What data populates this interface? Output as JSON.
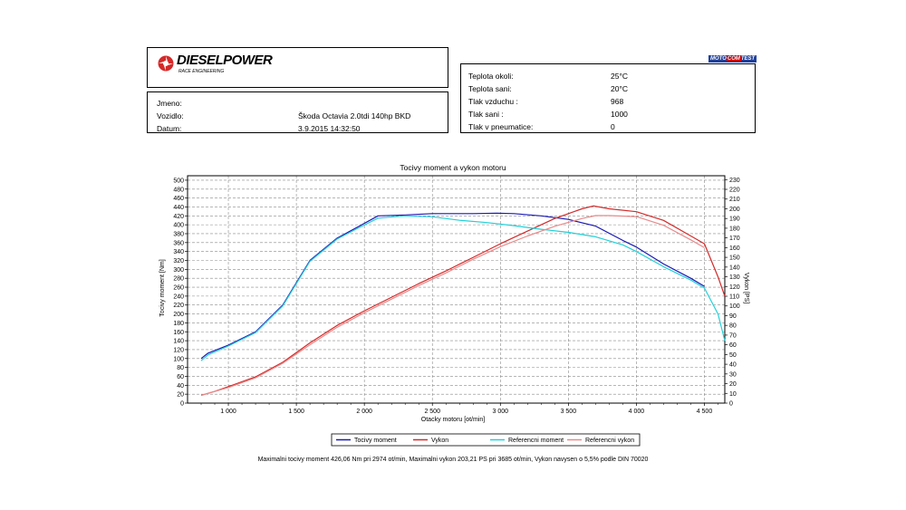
{
  "header": {
    "logo_text": "DIESELPOWER",
    "logo_subtitle": "RACE ENGINEERING",
    "brand_badge_left": "MOTO",
    "brand_badge_mid": "COM",
    "brand_badge_right": "TEST"
  },
  "info_left": [
    {
      "label": "Jmeno:",
      "value": ""
    },
    {
      "label": "Vozidlo:",
      "value": "Škoda Octavia 2.0tdi 140hp BKD"
    },
    {
      "label": "Datum:",
      "value": "3.9.2015 14:32:50"
    }
  ],
  "info_right": [
    {
      "label": "Teplota okoli:",
      "value": "25°C"
    },
    {
      "label": "Teplota sani:",
      "value": "20°C"
    },
    {
      "label": "Tlak vzduchu :",
      "value": "968"
    },
    {
      "label": "Tlak sani :",
      "value": "1000"
    },
    {
      "label": "Tlak v pneumatice:",
      "value": "0"
    }
  ],
  "footer": "Maximalni tocivy moment 426,06 Nm pri 2974 ot/min,  Maximalni vykon 203,21 PS pri 3685 ot/min,  Vykon navysen o 5,5% podle DIN 70020",
  "colors": {
    "moment": "#1a1ab4",
    "vykon": "#d42a2a",
    "ref_moment": "#22d0d8",
    "ref_vykon": "#e88a8a"
  },
  "chart_data": {
    "type": "line",
    "title": "Tocivy moment a vykon motoru",
    "xlabel": "Otacky motoru [ot/min]",
    "ylabel": "Tocivy moment [Nm]",
    "y2label": "Vykon [PS]",
    "xlim": [
      700,
      4650
    ],
    "ylim": [
      0,
      510
    ],
    "y2lim": [
      0,
      234
    ],
    "xticks": [
      1000,
      1500,
      2000,
      2500,
      3000,
      3500,
      4000,
      4500
    ],
    "xtick_labels": [
      "1 000",
      "1 500",
      "2 000",
      "2 500",
      "3 000",
      "3 500",
      "4 000",
      "4 500"
    ],
    "yticks": [
      0,
      20,
      40,
      60,
      80,
      100,
      120,
      140,
      160,
      180,
      200,
      220,
      240,
      260,
      280,
      300,
      320,
      340,
      360,
      380,
      400,
      420,
      440,
      460,
      480,
      500
    ],
    "y2ticks": [
      0,
      10,
      20,
      30,
      40,
      50,
      60,
      70,
      80,
      90,
      100,
      110,
      120,
      130,
      140,
      150,
      160,
      170,
      180,
      190,
      200,
      210,
      220,
      230
    ],
    "grid": true,
    "legend_placement": "bottom",
    "series": [
      {
        "name": "Tocivy moment",
        "axis": "left",
        "color_key": "moment",
        "x": [
          800,
          850,
          1000,
          1200,
          1400,
          1600,
          1800,
          1950,
          2100,
          2300,
          2500,
          2800,
          2974,
          3100,
          3300,
          3500,
          3700,
          3900,
          4000,
          4200,
          4400,
          4500
        ],
        "y": [
          100,
          112,
          130,
          160,
          220,
          320,
          370,
          395,
          420,
          422,
          425,
          425,
          426,
          425,
          420,
          412,
          397,
          365,
          350,
          312,
          280,
          262
        ]
      },
      {
        "name": "Vykon",
        "axis": "right",
        "color_key": "vykon",
        "x": [
          800,
          900,
          1000,
          1200,
          1400,
          1600,
          1800,
          2000,
          2200,
          2400,
          2600,
          2800,
          3000,
          3200,
          3400,
          3600,
          3685,
          3800,
          4000,
          4200,
          4400,
          4500,
          4600,
          4650
        ],
        "y": [
          8,
          12,
          17,
          27,
          42,
          62,
          80,
          95,
          109,
          123,
          136,
          150,
          164,
          177,
          190,
          200,
          203,
          200,
          197,
          188,
          172,
          164,
          130,
          110
        ]
      },
      {
        "name": "Referencni moment",
        "axis": "left",
        "color_key": "ref_moment",
        "x": [
          800,
          850,
          1000,
          1200,
          1400,
          1600,
          1800,
          1950,
          2100,
          2300,
          2500,
          2700,
          2900,
          3100,
          3300,
          3500,
          3700,
          3900,
          4000,
          4200,
          4400,
          4500,
          4600,
          4650
        ],
        "y": [
          95,
          108,
          128,
          158,
          218,
          318,
          368,
          392,
          415,
          420,
          418,
          410,
          405,
          398,
          390,
          383,
          373,
          355,
          340,
          306,
          276,
          258,
          200,
          140
        ]
      },
      {
        "name": "Referencni vykon",
        "axis": "right",
        "color_key": "ref_vykon",
        "x": [
          800,
          1000,
          1200,
          1400,
          1600,
          1800,
          2000,
          2200,
          2400,
          2600,
          2800,
          3000,
          3200,
          3400,
          3600,
          3700,
          3800,
          4000,
          4200,
          4400,
          4500
        ],
        "y": [
          8,
          16,
          26,
          41,
          60,
          78,
          93,
          107,
          121,
          134,
          148,
          161,
          172,
          182,
          190,
          193,
          193,
          192,
          183,
          168,
          160
        ]
      }
    ]
  }
}
